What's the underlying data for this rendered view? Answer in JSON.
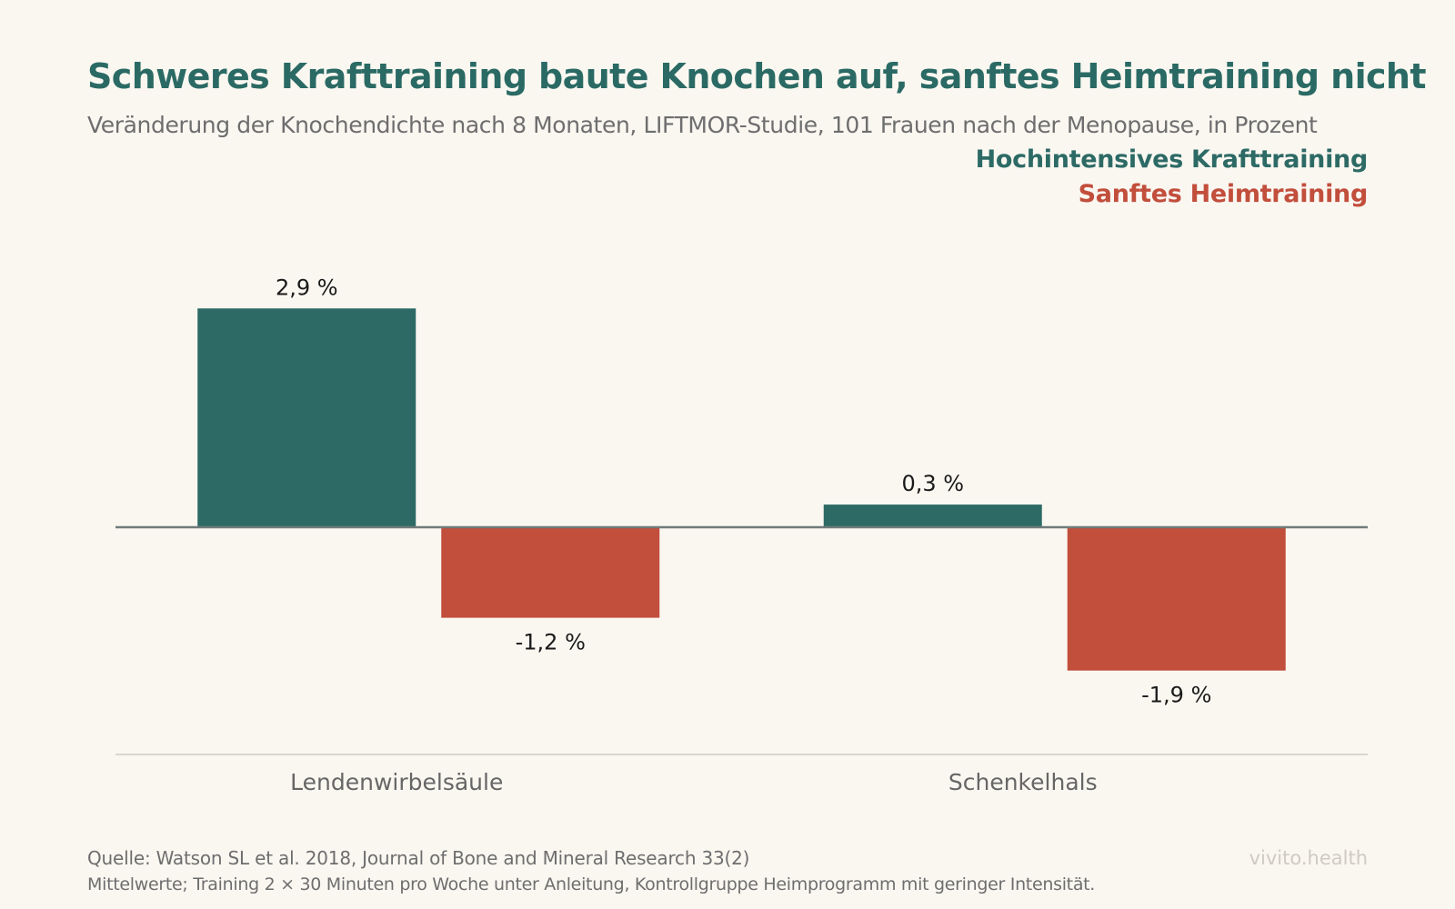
{
  "title": "Schweres Krafttraining baute Knochen auf, sanftes Heimtraining nicht",
  "subtitle": "Veränderung der Knochendichte nach 8 Monaten, LIFTMOR-Studie, 101 Frauen nach der Menopause, in Prozent",
  "colors": {
    "high_intensity": "#2d6a65",
    "home_training": "#c24e3c",
    "baseline": "#6f7b7a",
    "axis": "#d9d5cd",
    "label_text": "#1a1a1a",
    "category_text": "#666666"
  },
  "chart_data": {
    "type": "bar",
    "categories": [
      "Lendenwirbelsäule",
      "Schenkelhals"
    ],
    "series": [
      {
        "name": "Hochintensives Krafttraining",
        "values": [
          2.9,
          0.3
        ],
        "labels": [
          "2,9 %",
          "0,3 %"
        ]
      },
      {
        "name": "Sanftes Heimtraining",
        "values": [
          -1.2,
          -1.9
        ],
        "labels": [
          "-1,2 %",
          "-1,9 %"
        ]
      }
    ],
    "ylim": [
      -3,
      3.5
    ],
    "legend_position": "top-right",
    "grid": false
  },
  "footer": {
    "source": "Quelle: Watson SL et al. 2018, Journal of Bone and Mineral Research 33(2)",
    "note": "Mittelwerte; Training 2 × 30 Minuten pro Woche unter Anleitung, Kontrollgruppe Heimprogramm mit geringer Intensität.",
    "brand": "vivito.health"
  }
}
